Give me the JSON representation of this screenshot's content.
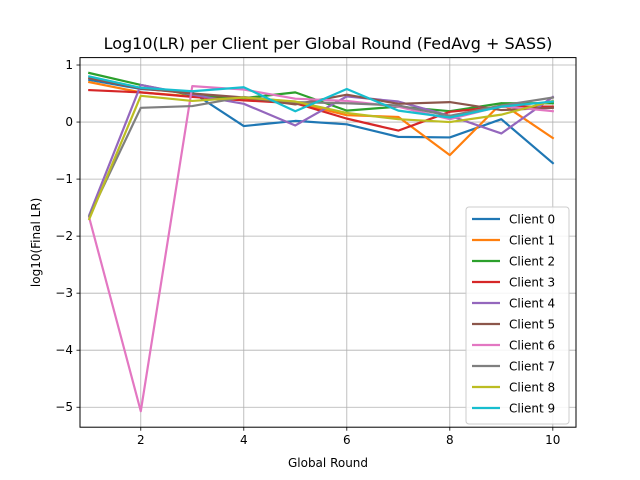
{
  "chart_data": {
    "type": "line",
    "title": "Log10(LR) per Client per Global Round (FedAvg + SASS)",
    "xlabel": "Global Round",
    "ylabel": "log10(Final LR)",
    "xlim": [
      0.82,
      10.45
    ],
    "ylim": [
      -5.35,
      1.13
    ],
    "xticks": [
      2,
      4,
      6,
      8,
      10
    ],
    "yticks": [
      1,
      0,
      -1,
      -2,
      -3,
      -4,
      -5
    ],
    "ytick_labels": [
      "1",
      "0",
      "−1",
      "−2",
      "−3",
      "−4",
      "−5"
    ],
    "grid": true,
    "legend_position": "lower-right",
    "x": [
      1,
      2,
      3,
      4,
      5,
      6,
      7,
      8,
      9,
      10
    ],
    "series": [
      {
        "name": "Client 0",
        "color": "#1f77b4",
        "values": [
          0.74,
          0.58,
          0.52,
          -0.07,
          0.02,
          -0.04,
          -0.26,
          -0.27,
          0.05,
          -0.72
        ]
      },
      {
        "name": "Client 1",
        "color": "#ff7f0e",
        "values": [
          0.7,
          0.52,
          0.45,
          0.42,
          0.34,
          0.12,
          0.09,
          -0.58,
          0.33,
          -0.28
        ]
      },
      {
        "name": "Client 2",
        "color": "#2ca02c",
        "values": [
          0.86,
          0.65,
          0.47,
          0.42,
          0.52,
          0.2,
          0.27,
          0.19,
          0.33,
          0.33
        ]
      },
      {
        "name": "Client 3",
        "color": "#d62728",
        "values": [
          0.56,
          0.52,
          0.44,
          0.38,
          0.33,
          0.06,
          -0.15,
          0.18,
          0.27,
          0.27
        ]
      },
      {
        "name": "Client 4",
        "color": "#9467bd",
        "values": [
          -1.63,
          0.65,
          0.48,
          0.32,
          -0.06,
          0.45,
          0.36,
          0.11,
          -0.2,
          0.44
        ]
      },
      {
        "name": "Client 5",
        "color": "#8c564b",
        "values": [
          0.77,
          0.59,
          0.5,
          0.43,
          0.31,
          0.48,
          0.32,
          0.35,
          0.21,
          0.25
        ]
      },
      {
        "name": "Client 6",
        "color": "#e377c2",
        "values": [
          -1.68,
          -5.07,
          0.63,
          0.57,
          0.41,
          0.37,
          0.27,
          0.05,
          0.28,
          0.19
        ]
      },
      {
        "name": "Client 7",
        "color": "#7f7f7f",
        "values": [
          -1.65,
          0.25,
          0.28,
          0.44,
          0.35,
          0.33,
          0.29,
          0.11,
          0.29,
          0.43
        ]
      },
      {
        "name": "Client 8",
        "color": "#bcbd22",
        "values": [
          -1.7,
          0.46,
          0.37,
          0.43,
          0.36,
          0.16,
          0.05,
          0.0,
          0.13,
          0.37
        ]
      },
      {
        "name": "Client 9",
        "color": "#17becf",
        "values": [
          0.8,
          0.6,
          0.54,
          0.61,
          0.19,
          0.58,
          0.2,
          0.08,
          0.27,
          0.36
        ]
      }
    ]
  }
}
